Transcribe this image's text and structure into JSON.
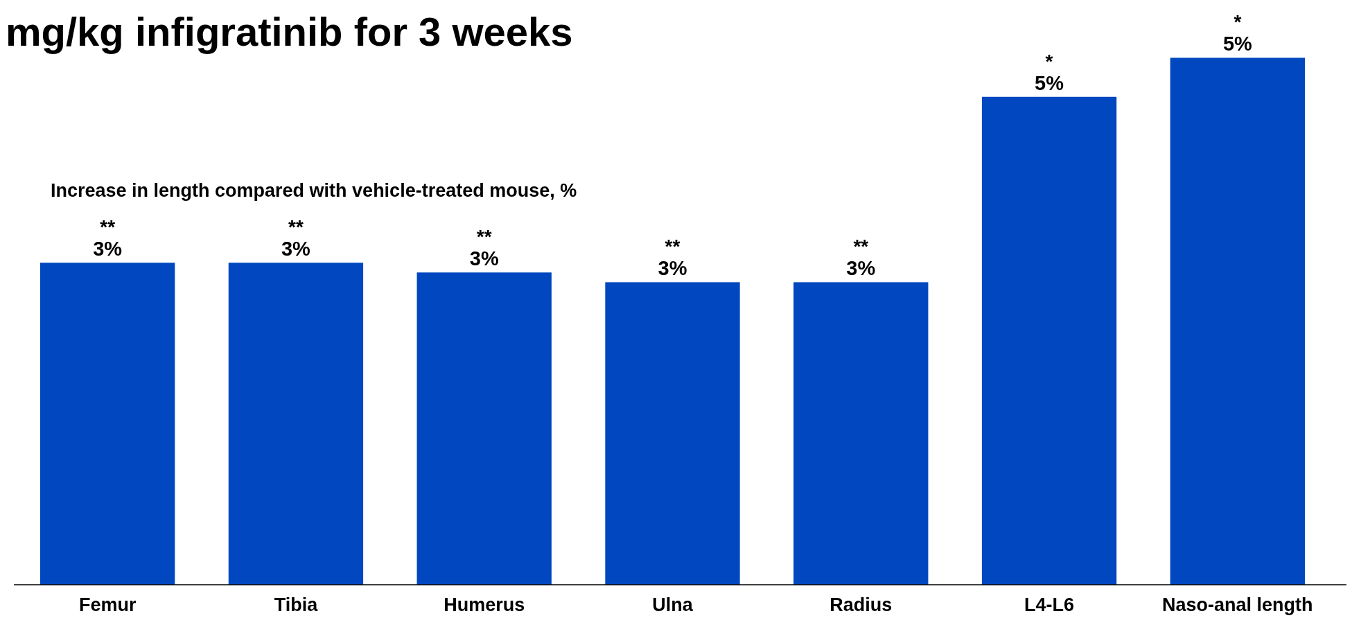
{
  "chart_data": {
    "type": "bar",
    "title": "mg/kg infigratinib for 3 weeks",
    "subtitle": "Increase in length compared with vehicle-treated mouse, %",
    "categories": [
      "Femur",
      "Tibia",
      "Humerus",
      "Ulna",
      "Radius",
      "L4-L6",
      "Naso-anal length"
    ],
    "values": [
      3.3,
      3.3,
      3.2,
      3.1,
      3.1,
      5.0,
      5.4
    ],
    "value_labels": [
      "3%",
      "3%",
      "3%",
      "3%",
      "3%",
      "5%",
      "5%"
    ],
    "color": "#0047c0",
    "ylim": [
      0,
      5.9
    ],
    "tick_labels": "x",
    "annotations": [
      "**",
      "**",
      "**",
      "**",
      "**",
      "*",
      "*"
    ]
  }
}
